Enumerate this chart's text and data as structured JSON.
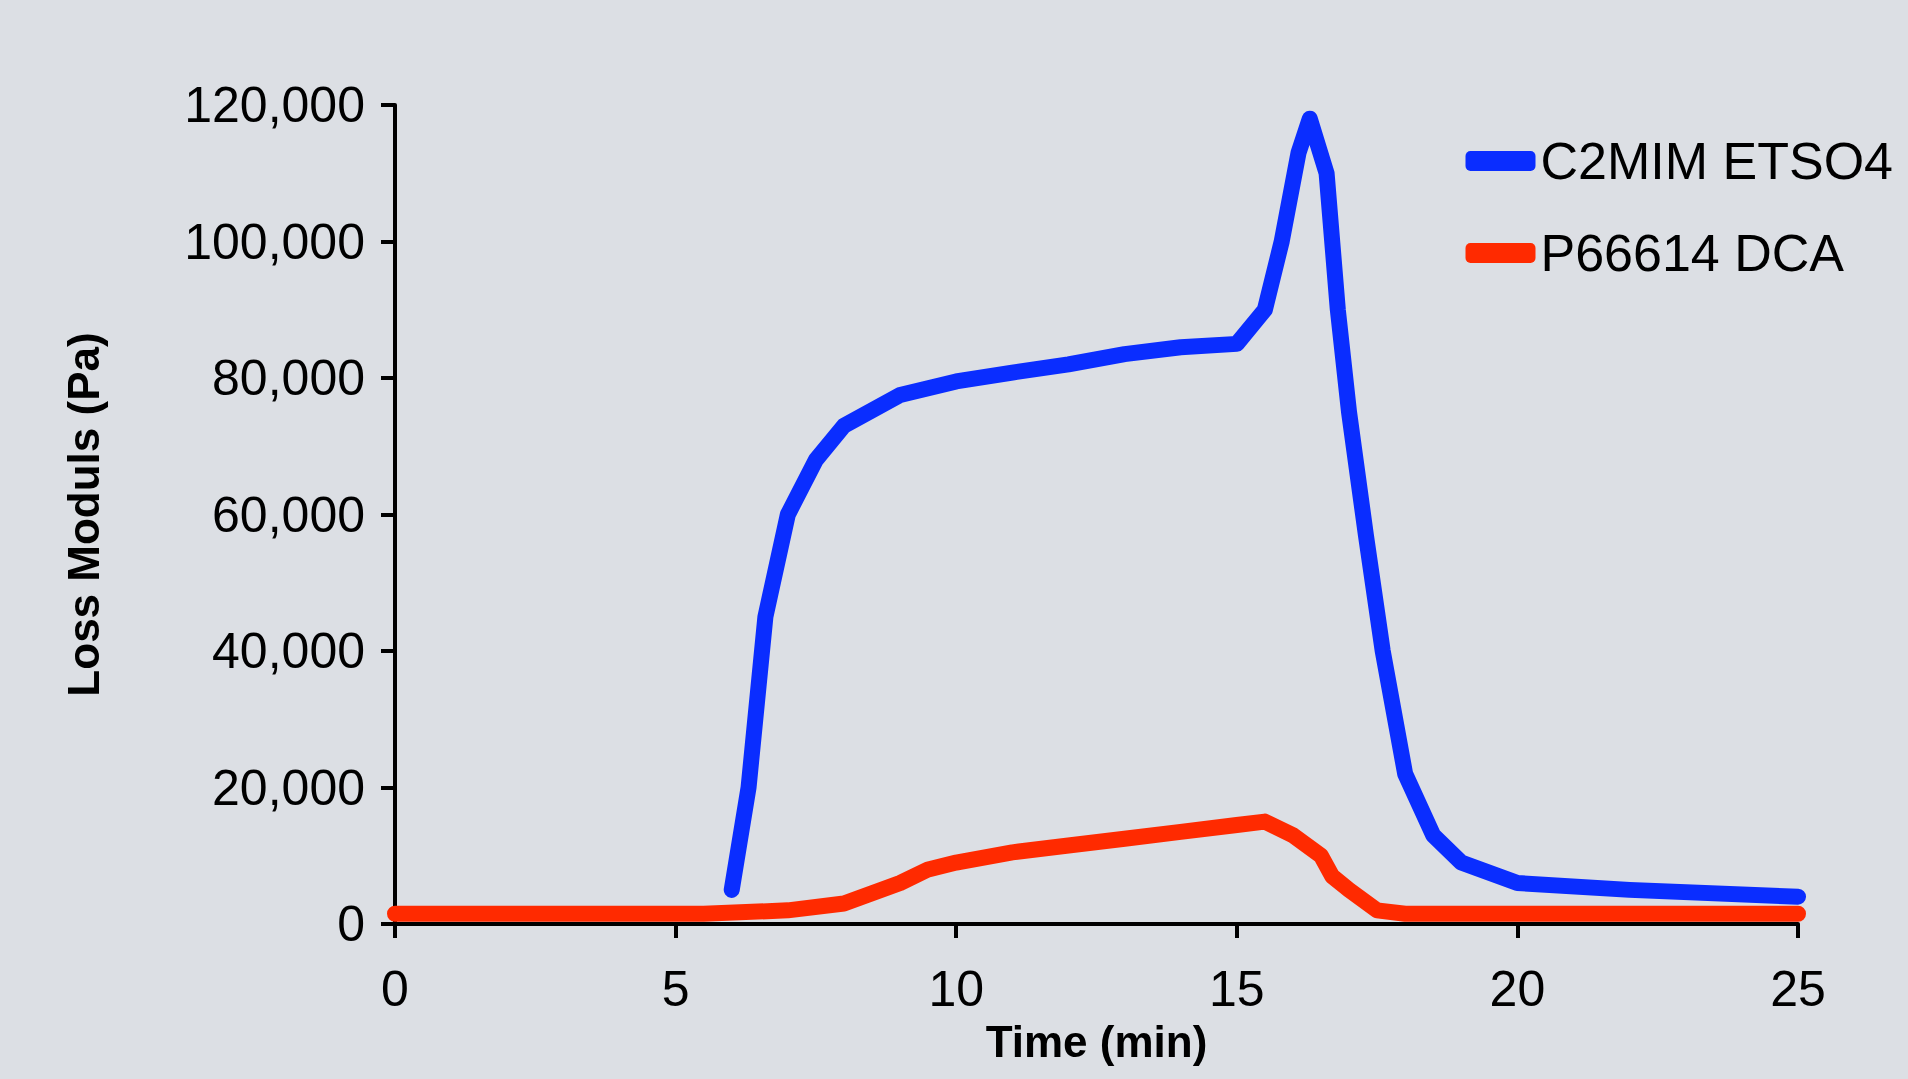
{
  "chart_data": {
    "type": "line",
    "xlabel": "Time (min)",
    "ylabel": "Loss Moduls (Pa)",
    "xlim": [
      0,
      25
    ],
    "xticks": [
      0,
      5,
      10,
      15,
      20,
      25
    ],
    "ylim": [
      0,
      120000
    ],
    "yticks": [
      0,
      {
        "value": 20000,
        "label": "20,000"
      },
      {
        "value": 40000,
        "label": "40,000"
      },
      {
        "value": 60000,
        "label": "60,000"
      },
      {
        "value": 80000,
        "label": "80,000"
      },
      {
        "value": 100000,
        "label": "100,000"
      },
      {
        "value": 120000,
        "label": "120,000"
      }
    ],
    "legend": "top right",
    "line_style": "solid",
    "series": [
      {
        "name": "C2MIM ETSO4",
        "color": "#0a2dff",
        "x": [
          6,
          6.3,
          6.6,
          7,
          7.5,
          8,
          9,
          10,
          11,
          12,
          13,
          14,
          15,
          15.5,
          15.8,
          16.1,
          16.3,
          16.6,
          16.8,
          17,
          17.3,
          17.6,
          18,
          18.5,
          19,
          20,
          22,
          25
        ],
        "values": [
          5000,
          20000,
          45000,
          60000,
          68000,
          73000,
          77500,
          79500,
          80800,
          82000,
          83500,
          84500,
          85000,
          90000,
          100000,
          113000,
          118000,
          110000,
          90000,
          75000,
          57000,
          40000,
          22000,
          13000,
          9000,
          6000,
          5000,
          4000
        ]
      },
      {
        "name": "P66614 DCA",
        "color": "#ff2a00",
        "x": [
          0,
          2,
          4,
          5.5,
          7,
          8,
          8.5,
          9,
          9.5,
          10,
          11,
          12,
          13,
          14,
          15,
          15.5,
          16,
          16.5,
          16.7,
          17,
          17.5,
          18,
          20,
          25
        ],
        "values": [
          1500,
          1500,
          1500,
          1500,
          2000,
          3000,
          4500,
          6000,
          8000,
          9000,
          10500,
          11500,
          12500,
          13500,
          14500,
          15000,
          13000,
          10000,
          7000,
          5000,
          2000,
          1500,
          1500,
          1500
        ]
      }
    ]
  }
}
